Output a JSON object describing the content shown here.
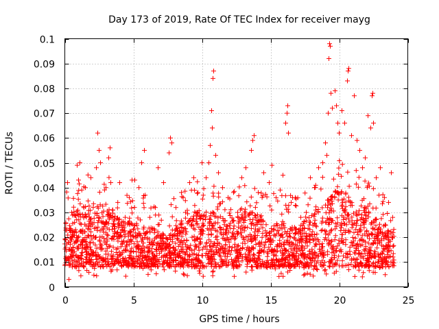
{
  "chart_data": {
    "type": "scatter",
    "title": "Day 173 of 2019, Rate Of TEC Index for receiver mayg",
    "xlabel": "GPS time / hours",
    "ylabel": "ROTI / TECUs",
    "xlim": [
      0,
      25
    ],
    "ylim": [
      0,
      0.1
    ],
    "x_ticks": [
      0,
      5,
      10,
      15,
      20,
      25
    ],
    "x_tick_labels": [
      "0",
      "5",
      "10",
      "15",
      "20",
      "25"
    ],
    "y_ticks": [
      0,
      0.01,
      0.02,
      0.03,
      0.04,
      0.05,
      0.06,
      0.07,
      0.08,
      0.09,
      0.1
    ],
    "y_tick_labels": [
      "0",
      "0.01",
      "0.02",
      "0.03",
      "0.04",
      "0.05",
      "0.06",
      "0.07",
      "0.08",
      "0.09",
      "0.1"
    ],
    "grid": true,
    "marker": "+",
    "marker_color": "#ff0000",
    "series": [
      {
        "name": "ROTI",
        "points": [
          [
            0.2,
            0.042
          ],
          [
            0.3,
            0.003
          ],
          [
            0.5,
            0.03
          ],
          [
            0.9,
            0.049
          ],
          [
            1.0,
            0.043
          ],
          [
            1.1,
            0.05
          ],
          [
            1.5,
            0.04
          ],
          [
            1.9,
            0.044
          ],
          [
            2.3,
            0.048
          ],
          [
            2.4,
            0.062
          ],
          [
            2.5,
            0.055
          ],
          [
            2.6,
            0.05
          ],
          [
            3.0,
            0.04
          ],
          [
            3.2,
            0.052
          ],
          [
            3.3,
            0.056
          ],
          [
            3.5,
            0.031
          ],
          [
            4.0,
            0.042
          ],
          [
            4.4,
            0.028
          ],
          [
            4.7,
            0.036
          ],
          [
            4.9,
            0.043
          ],
          [
            5.1,
            0.043
          ],
          [
            5.4,
            0.04
          ],
          [
            5.6,
            0.05
          ],
          [
            5.8,
            0.055
          ],
          [
            6.2,
            0.028
          ],
          [
            6.6,
            0.032
          ],
          [
            6.8,
            0.048
          ],
          [
            7.2,
            0.042
          ],
          [
            7.6,
            0.054
          ],
          [
            7.7,
            0.06
          ],
          [
            7.8,
            0.058
          ],
          [
            8.1,
            0.032
          ],
          [
            8.5,
            0.038
          ],
          [
            8.8,
            0.03
          ],
          [
            9.1,
            0.042
          ],
          [
            9.4,
            0.044
          ],
          [
            9.7,
            0.038
          ],
          [
            10.0,
            0.05
          ],
          [
            10.3,
            0.044
          ],
          [
            10.5,
            0.05
          ],
          [
            10.6,
            0.057
          ],
          [
            10.7,
            0.071
          ],
          [
            10.75,
            0.064
          ],
          [
            10.8,
            0.084
          ],
          [
            10.85,
            0.087
          ],
          [
            11.0,
            0.053
          ],
          [
            11.2,
            0.046
          ],
          [
            11.5,
            0.04
          ],
          [
            11.9,
            0.036
          ],
          [
            12.3,
            0.038
          ],
          [
            12.6,
            0.03
          ],
          [
            12.9,
            0.044
          ],
          [
            13.2,
            0.048
          ],
          [
            13.6,
            0.055
          ],
          [
            13.7,
            0.059
          ],
          [
            13.8,
            0.061
          ],
          [
            14.1,
            0.038
          ],
          [
            14.5,
            0.046
          ],
          [
            14.9,
            0.042
          ],
          [
            15.1,
            0.049
          ],
          [
            15.4,
            0.036
          ],
          [
            15.7,
            0.039
          ],
          [
            15.9,
            0.045
          ],
          [
            16.1,
            0.066
          ],
          [
            16.2,
            0.07
          ],
          [
            16.25,
            0.073
          ],
          [
            16.3,
            0.062
          ],
          [
            16.5,
            0.034
          ],
          [
            16.8,
            0.036
          ],
          [
            17.2,
            0.028
          ],
          [
            17.6,
            0.03
          ],
          [
            17.9,
            0.044
          ],
          [
            18.2,
            0.04
          ],
          [
            18.5,
            0.048
          ],
          [
            18.8,
            0.05
          ],
          [
            19.0,
            0.058
          ],
          [
            19.1,
            0.053
          ],
          [
            19.2,
            0.07
          ],
          [
            19.25,
            0.092
          ],
          [
            19.3,
            0.098
          ],
          [
            19.35,
            0.097
          ],
          [
            19.4,
            0.078
          ],
          [
            19.5,
            0.072
          ],
          [
            19.7,
            0.079
          ],
          [
            19.8,
            0.073
          ],
          [
            19.9,
            0.066
          ],
          [
            20.0,
            0.062
          ],
          [
            20.2,
            0.071
          ],
          [
            20.4,
            0.066
          ],
          [
            20.6,
            0.083
          ],
          [
            20.65,
            0.087
          ],
          [
            20.7,
            0.088
          ],
          [
            20.9,
            0.061
          ],
          [
            21.1,
            0.077
          ],
          [
            21.3,
            0.059
          ],
          [
            21.5,
            0.055
          ],
          [
            21.7,
            0.048
          ],
          [
            21.9,
            0.052
          ],
          [
            22.1,
            0.069
          ],
          [
            22.3,
            0.064
          ],
          [
            22.4,
            0.077
          ],
          [
            22.45,
            0.078
          ],
          [
            22.5,
            0.066
          ],
          [
            22.7,
            0.044
          ],
          [
            23.0,
            0.048
          ],
          [
            23.3,
            0.036
          ],
          [
            23.6,
            0.034
          ],
          [
            23.8,
            0.046
          ],
          [
            23.9,
            0.028
          ]
        ],
        "dense_band": {
          "x_range": [
            0,
            24
          ],
          "lower": 0.008,
          "upper_profile": [
            [
              0,
              0.026
            ],
            [
              1,
              0.032
            ],
            [
              2,
              0.034
            ],
            [
              3,
              0.034
            ],
            [
              4,
              0.028
            ],
            [
              5,
              0.026
            ],
            [
              6,
              0.025
            ],
            [
              7,
              0.022
            ],
            [
              7.5,
              0.02
            ],
            [
              8,
              0.024
            ],
            [
              9,
              0.028
            ],
            [
              10,
              0.032
            ],
            [
              11,
              0.03
            ],
            [
              12,
              0.026
            ],
            [
              13,
              0.03
            ],
            [
              14,
              0.03
            ],
            [
              15,
              0.026
            ],
            [
              16,
              0.026
            ],
            [
              17,
              0.024
            ],
            [
              18,
              0.03
            ],
            [
              19,
              0.034
            ],
            [
              20,
              0.04
            ],
            [
              21,
              0.036
            ],
            [
              22,
              0.032
            ],
            [
              23,
              0.026
            ],
            [
              24,
              0.024
            ]
          ]
        }
      }
    ]
  }
}
